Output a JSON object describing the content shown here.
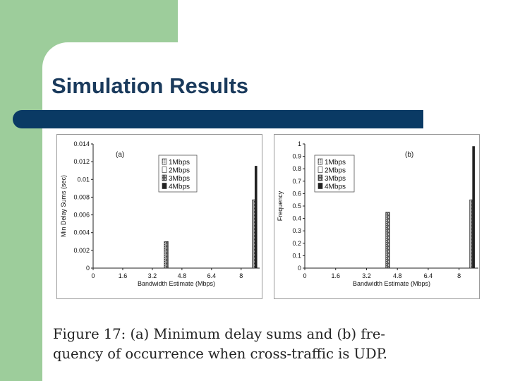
{
  "slide": {
    "title": "Simulation Results",
    "caption_lines": [
      "Figure 17:  (a) Minimum delay sums and (b) fre-",
      "quency of occurrence when cross-traffic is UDP."
    ]
  },
  "colors": {
    "left_band": "#9dcd9b",
    "title_bar": "#0a3a64",
    "title_text": "#1a3a5c"
  },
  "chart_data": [
    {
      "type": "bar",
      "panel_label": "(a)",
      "xlabel": "Bandwidth Estimate (Mbps)",
      "ylabel": "Min Delay Sums (sec)",
      "xlim": [
        0,
        9.0
      ],
      "ylim": [
        0,
        0.014
      ],
      "xticks": [
        "0",
        "1.6",
        "3.2",
        "4.8",
        "6.4",
        "8"
      ],
      "xtick_values": [
        0,
        1.6,
        3.2,
        4.8,
        6.4,
        8.0
      ],
      "yticks": [
        "0",
        "0.002",
        "0.004",
        "0.006",
        "0.008",
        "0.01",
        "0.012",
        "0.014"
      ],
      "ytick_values": [
        0,
        0.002,
        0.004,
        0.006,
        0.008,
        0.01,
        0.012,
        0.014
      ],
      "legend_position": "top-left",
      "series": [
        {
          "name": "1Mbps",
          "pattern": "dots",
          "x": [
            3.9,
            8.65
          ],
          "values": [
            0.003,
            0.0077
          ]
        },
        {
          "name": "2Mbps",
          "pattern": "hollow",
          "x": [
            3.95,
            8.7
          ],
          "values": [
            0.003,
            0.0077
          ]
        },
        {
          "name": "3Mbps",
          "pattern": "dense",
          "x": [
            4.0,
            8.75
          ],
          "values": [
            0.003,
            0.0077
          ]
        },
        {
          "name": "4Mbps",
          "pattern": "solid",
          "x": [
            8.8
          ],
          "values": [
            0.0115
          ]
        }
      ]
    },
    {
      "type": "bar",
      "panel_label": "(b)",
      "xlabel": "Bandwidth Estimate (Mbps)",
      "ylabel": "Frequency",
      "xlim": [
        0,
        9.0
      ],
      "ylim": [
        0,
        1
      ],
      "xticks": [
        "0",
        "1.6",
        "3.2",
        "4.8",
        "6.4",
        "8"
      ],
      "xtick_values": [
        0,
        1.6,
        3.2,
        4.8,
        6.4,
        8.0
      ],
      "yticks": [
        "0",
        "0.1",
        "0.2",
        "0.3",
        "0.4",
        "0.5",
        "0.6",
        "0.7",
        "0.8",
        "0.9",
        "1"
      ],
      "ytick_values": [
        0,
        0.1,
        0.2,
        0.3,
        0.4,
        0.5,
        0.6,
        0.7,
        0.8,
        0.9,
        1
      ],
      "legend_position": "top-left",
      "series": [
        {
          "name": "1Mbps",
          "pattern": "dots",
          "x": [
            4.25,
            8.6
          ],
          "values": [
            0.45,
            0.55
          ]
        },
        {
          "name": "2Mbps",
          "pattern": "hollow",
          "x": [
            4.3,
            8.65
          ],
          "values": [
            0.45,
            0.55
          ]
        },
        {
          "name": "3Mbps",
          "pattern": "dense",
          "x": [
            4.35,
            8.7
          ],
          "values": [
            0.45,
            0.55
          ]
        },
        {
          "name": "4Mbps",
          "pattern": "solid",
          "x": [
            8.75
          ],
          "values": [
            0.98
          ]
        }
      ]
    }
  ]
}
